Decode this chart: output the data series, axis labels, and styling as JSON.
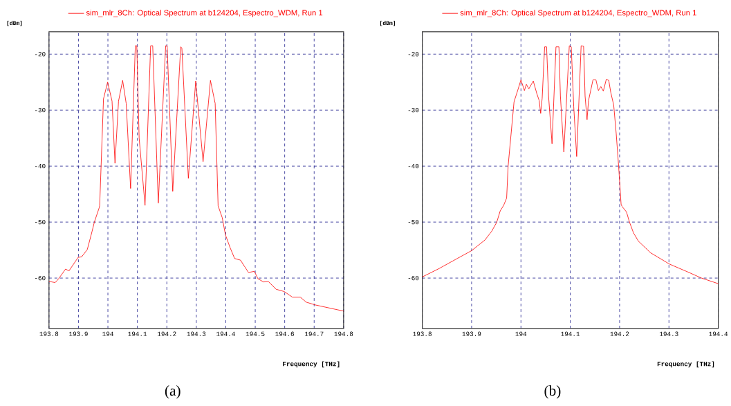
{
  "chart_data": [
    {
      "type": "line",
      "xlabel": "Frequency [THz]",
      "ylabel": "[dBm]",
      "xlim": [
        193.8,
        194.8
      ],
      "ylim": [
        -69,
        -16
      ],
      "xticks": [
        193.8,
        193.9,
        194,
        194.1,
        194.2,
        194.3,
        194.4,
        194.5,
        194.6,
        194.7,
        194.8
      ],
      "yticks": [
        -60,
        -50,
        -40,
        -30,
        -20
      ],
      "grid": true,
      "legend": "top",
      "annotations": [
        "(a)"
      ],
      "series": [
        {
          "name": "sim_mlr_8Ch: Optical Spectrum at b124204, Espectro_WDM, Run 1",
          "color": "#ff0000",
          "x": [
            193.8,
            193.821,
            193.833,
            193.856,
            193.868,
            193.899,
            193.911,
            193.93,
            193.946,
            193.954,
            193.97,
            193.972,
            193.985,
            193.999,
            194.014,
            194.024,
            194.036,
            194.05,
            194.062,
            194.077,
            194.093,
            194.098,
            194.106,
            194.126,
            194.145,
            194.152,
            194.171,
            194.196,
            194.201,
            194.22,
            194.247,
            194.251,
            194.273,
            194.298,
            194.323,
            194.348,
            194.364,
            194.374,
            194.388,
            194.399,
            194.415,
            194.43,
            194.45,
            194.477,
            194.497,
            194.509,
            194.528,
            194.544,
            194.571,
            194.598,
            194.626,
            194.653,
            194.673,
            194.704,
            194.8
          ],
          "values": [
            -60.6,
            -60.8,
            -60.1,
            -58.4,
            -58.7,
            -56.3,
            -56.2,
            -54.9,
            -51.7,
            -50,
            -47.5,
            -47.1,
            -28,
            -25,
            -28.4,
            -39.5,
            -28.4,
            -24.7,
            -28.8,
            -44,
            -18.5,
            -18.5,
            -35,
            -47,
            -18.5,
            -18.5,
            -46.6,
            -18.5,
            -18.5,
            -44.5,
            -18.7,
            -18.9,
            -42.2,
            -24.8,
            -39.2,
            -24.7,
            -28.8,
            -47.1,
            -49.2,
            -52.3,
            -54.6,
            -56.5,
            -56.8,
            -59,
            -58.8,
            -60.1,
            -60.7,
            -60.6,
            -62,
            -62.4,
            -63.4,
            -63.4,
            -64.3,
            -64.8,
            -65.9
          ]
        }
      ]
    },
    {
      "type": "line",
      "xlabel": "Frequency [THz]",
      "ylabel": "[dBm]",
      "xlim": [
        193.8,
        194.4
      ],
      "ylim": [
        -69,
        -16
      ],
      "xticks": [
        193.8,
        193.9,
        194,
        194.1,
        194.2,
        194.3,
        194.4
      ],
      "yticks": [
        -60,
        -50,
        -40,
        -30,
        -20
      ],
      "grid": true,
      "legend": "top",
      "annotations": [
        "(b)"
      ],
      "series": [
        {
          "name": "sim_mlr_8Ch: Optical Spectrum at b124204, Espectro_WDM, Run 1",
          "color": "#ff0000",
          "x": [
            193.8,
            193.834,
            193.871,
            193.9,
            193.927,
            193.941,
            193.951,
            193.958,
            193.965,
            193.971,
            193.974,
            193.986,
            193.993,
            194.0,
            194.007,
            194.011,
            194.016,
            194.025,
            194.032,
            194.037,
            194.04,
            194.043,
            194.048,
            194.052,
            194.056,
            194.063,
            194.071,
            194.077,
            194.08,
            194.087,
            194.098,
            194.102,
            194.107,
            194.113,
            194.122,
            194.127,
            194.13,
            194.134,
            194.137,
            194.146,
            194.152,
            194.157,
            194.162,
            194.167,
            194.173,
            194.178,
            194.182,
            194.188,
            194.193,
            194.198,
            194.203,
            194.205,
            194.214,
            194.22,
            194.228,
            194.238,
            194.263,
            194.301,
            194.338,
            194.366,
            194.4
          ],
          "values": [
            -59.8,
            -58.3,
            -56.5,
            -55.1,
            -53.2,
            -51.6,
            -50,
            -48,
            -47,
            -45.7,
            -40,
            -28.5,
            -26.6,
            -24.6,
            -26.5,
            -25.4,
            -26.2,
            -24.8,
            -27,
            -28.3,
            -30.6,
            -27.9,
            -18.7,
            -18.7,
            -27.5,
            -36,
            -18.7,
            -18.7,
            -27.5,
            -37.5,
            -18.5,
            -18.7,
            -29.4,
            -38.3,
            -18.5,
            -18.6,
            -27.5,
            -31.7,
            -28.3,
            -24.6,
            -24.6,
            -26.5,
            -25.8,
            -26.6,
            -24.5,
            -24.7,
            -26.8,
            -29.1,
            -34.1,
            -40,
            -46.8,
            -47.2,
            -48.2,
            -50,
            -51.9,
            -53.4,
            -55.5,
            -57.5,
            -58.9,
            -60,
            -61
          ]
        }
      ]
    }
  ]
}
